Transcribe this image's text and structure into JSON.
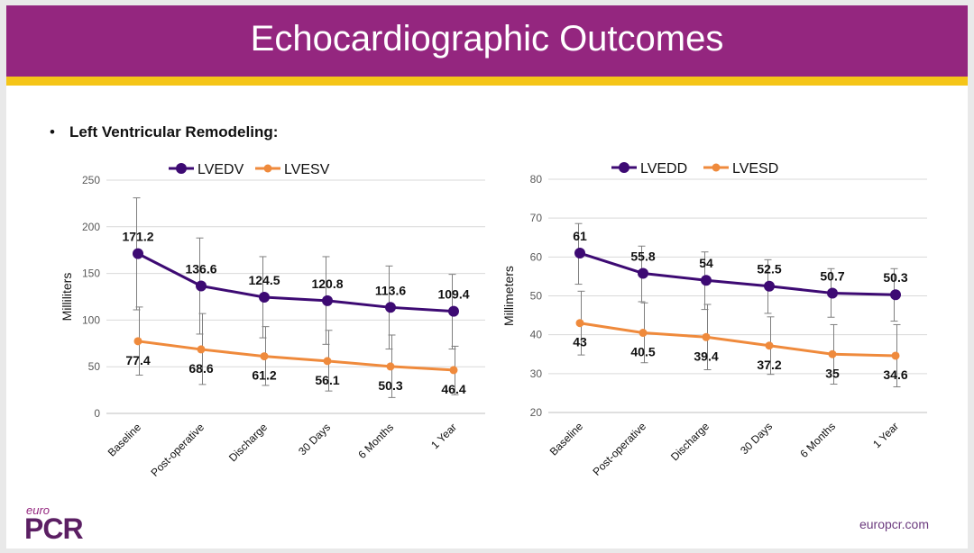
{
  "slide": {
    "title": "Echocardiographic Outcomes",
    "bullet": "Left Ventricular Remodeling:",
    "footer_url": "europcr.com",
    "logo": {
      "euro": "euro",
      "pcr": "PCR"
    }
  },
  "colors": {
    "purple": "#3d0a73",
    "orange": "#ef8a3c",
    "header": "#94267f",
    "stripe": "#f5c518"
  },
  "chart_data": [
    {
      "type": "line",
      "categories": [
        "Baseline",
        "Post-operative",
        "Discharge",
        "30 Days",
        "6 Months",
        "1 Year"
      ],
      "ylabel": "Milliliters",
      "ylim": [
        0,
        250
      ],
      "yticks": [
        0,
        50,
        100,
        150,
        200,
        250
      ],
      "grid": true,
      "legend": "top",
      "series": [
        {
          "name": "LVEDV",
          "color": "#3d0a73",
          "values": [
            171.2,
            136.6,
            124.5,
            120.8,
            113.6,
            109.4
          ],
          "labels": [
            "171.2",
            "136.6",
            "124.5",
            "120.8",
            "113.6",
            "109.4"
          ],
          "error_low": [
            111,
            85,
            81,
            74,
            69,
            69
          ],
          "error_high": [
            231,
            188,
            168,
            168,
            158,
            149
          ]
        },
        {
          "name": "LVESV",
          "color": "#ef8a3c",
          "values": [
            77.4,
            68.6,
            61.2,
            56.1,
            50.3,
            46.4
          ],
          "labels": [
            "77.4",
            "68.6",
            "61.2",
            "56.1",
            "50.3",
            "46.4"
          ],
          "error_low": [
            41,
            31,
            30,
            24,
            17,
            20
          ],
          "error_high": [
            114,
            107,
            93,
            89,
            84,
            72
          ]
        }
      ]
    },
    {
      "type": "line",
      "categories": [
        "Baseline",
        "Post-operative",
        "Discharge",
        "30 Days",
        "6 Months",
        "1 Year"
      ],
      "ylabel": "Millimeters",
      "ylim": [
        20,
        80
      ],
      "yticks": [
        20,
        30,
        40,
        50,
        60,
        70,
        80
      ],
      "grid": true,
      "legend": "top",
      "series": [
        {
          "name": "LVEDD",
          "color": "#3d0a73",
          "values": [
            61,
            55.8,
            54,
            52.5,
            50.7,
            50.3
          ],
          "labels": [
            "61",
            "55.8",
            "54",
            "52.5",
            "50.7",
            "50.3"
          ],
          "error_low": [
            53,
            48.5,
            46.5,
            45.5,
            44.5,
            43.5
          ],
          "error_high": [
            68.6,
            62.8,
            61.3,
            59.3,
            57,
            57
          ]
        },
        {
          "name": "LVESD",
          "color": "#ef8a3c",
          "values": [
            43,
            40.5,
            39.4,
            37.2,
            35,
            34.6
          ],
          "labels": [
            "43",
            "40.5",
            "39.4",
            "37.2",
            "35",
            "34.6"
          ],
          "error_low": [
            34.8,
            32.8,
            31,
            29.8,
            27.3,
            26.6
          ],
          "error_high": [
            51.2,
            48.2,
            47.8,
            44.6,
            42.6,
            42.6
          ]
        }
      ]
    }
  ]
}
